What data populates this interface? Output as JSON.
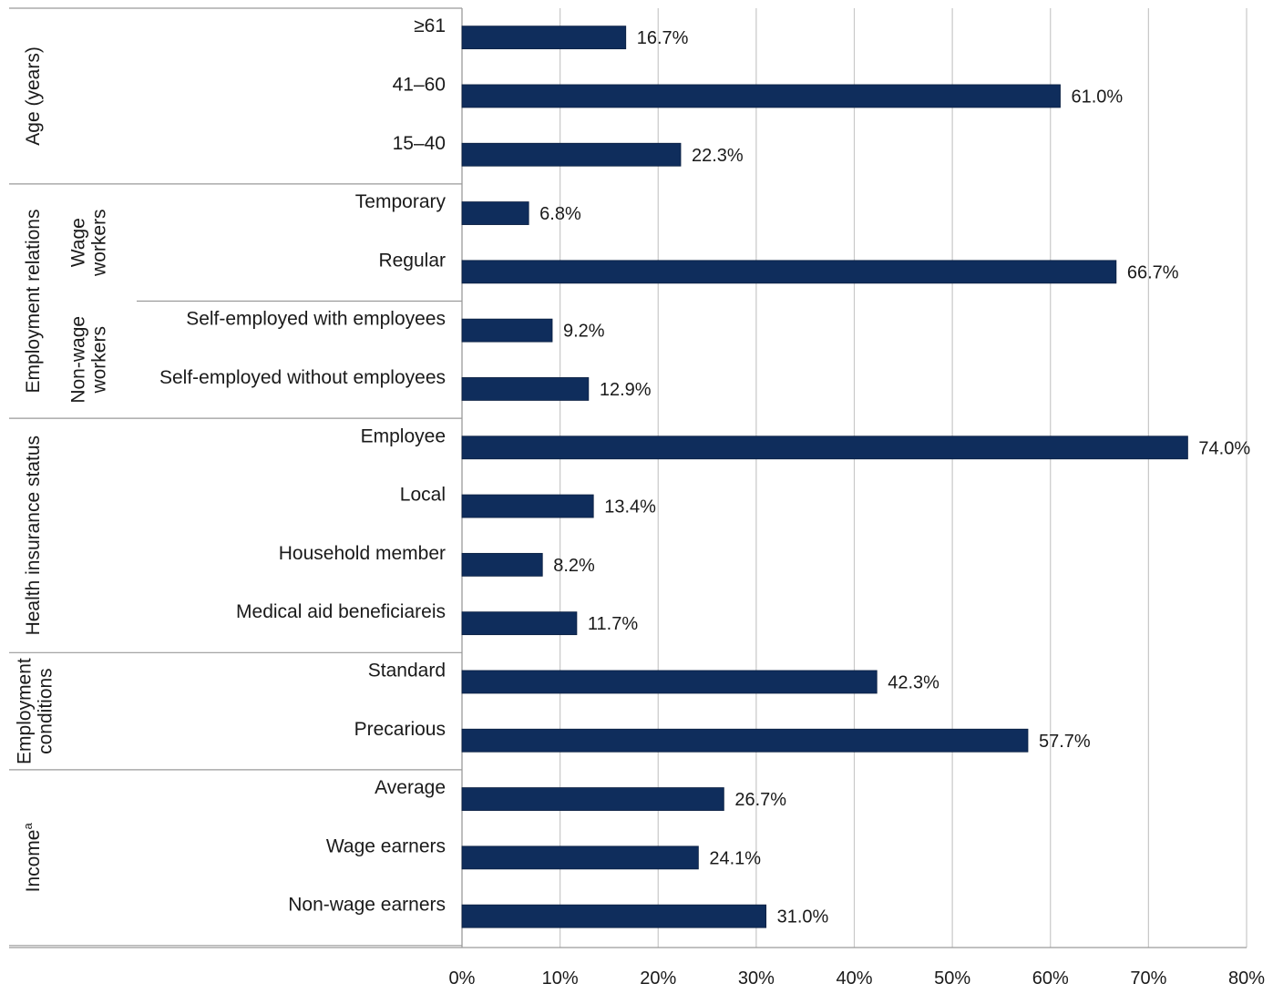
{
  "chart_data": {
    "type": "bar",
    "orientation": "horizontal",
    "title": "",
    "xlabel": "",
    "ylabel": "",
    "xlim": [
      0,
      80
    ],
    "x_ticks": [
      "0%",
      "10%",
      "20%",
      "30%",
      "40%",
      "50%",
      "60%",
      "70%",
      "80%"
    ],
    "grid": "vertical",
    "bar_color": "#0f2d5c",
    "grid_color": "#c8c8c8",
    "categories": [
      "≥61",
      "41–60",
      "15–40",
      "Temporary",
      "Regular",
      "Self-employed with employees",
      "Self-employed without employees",
      "Employee",
      "Local",
      "Household member",
      "Medical aid beneficiareis",
      "Standard",
      "Precarious",
      "Average",
      "Wage earners",
      "Non-wage earners"
    ],
    "values": [
      16.7,
      61.0,
      22.3,
      6.8,
      66.7,
      9.2,
      12.9,
      74.0,
      13.4,
      8.2,
      11.7,
      42.3,
      57.7,
      26.7,
      24.1,
      31.0
    ],
    "value_labels": [
      "16.7%",
      "61.0%",
      "22.3%",
      "6.8%",
      "66.7%",
      "9.2%",
      "12.9%",
      "74.0%",
      "13.4%",
      "8.2%",
      "11.7%",
      "42.3%",
      "57.7%",
      "26.7%",
      "24.1%",
      "31.0%"
    ],
    "groups": [
      {
        "label": "Age (years)",
        "start": 0,
        "end": 2
      },
      {
        "label": "Employment relations",
        "start": 3,
        "end": 6,
        "subgroups": [
          {
            "label_lines": [
              "Wage",
              "workers"
            ],
            "start": 3,
            "end": 4
          },
          {
            "label_lines": [
              "Non-wage",
              "workers"
            ],
            "start": 5,
            "end": 6
          }
        ]
      },
      {
        "label": "Health insurance status",
        "start": 7,
        "end": 10
      },
      {
        "label_lines": [
          "Employment",
          "conditions"
        ],
        "start": 11,
        "end": 12
      },
      {
        "label": "Income",
        "label_sup": "a",
        "start": 13,
        "end": 15
      }
    ]
  }
}
